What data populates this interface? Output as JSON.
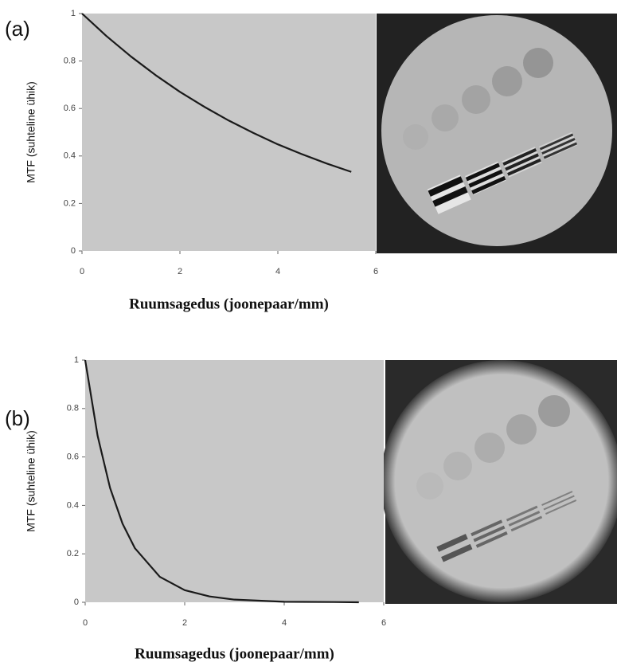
{
  "chart_data": [
    {
      "type": "line",
      "panel_label": "(a)",
      "x_label": "Ruumsagedus (joonepaar/mm)",
      "y_label": "MTF (suhteline ühik)",
      "x": [
        0,
        0.5,
        1,
        1.5,
        2,
        2.5,
        3,
        3.5,
        4,
        4.5,
        5,
        5.5
      ],
      "values": [
        1,
        0.905,
        0.819,
        0.741,
        0.67,
        0.607,
        0.549,
        0.497,
        0.449,
        0.407,
        0.368,
        0.333
      ],
      "color": "#1a1a1a",
      "background": "#c8c8c8",
      "xlim": [
        0,
        6
      ],
      "ylim": [
        0,
        1
      ],
      "xticks": [
        0,
        2,
        4,
        6
      ],
      "yticks": [
        0,
        0.2,
        0.4,
        0.6,
        0.8,
        1
      ]
    },
    {
      "type": "line",
      "panel_label": "(b)",
      "x_label": "Ruumsagedus (joonepaar/mm)",
      "y_label": "MTF (suhteline ühik)",
      "x": [
        0,
        0.25,
        0.5,
        0.75,
        1,
        1.5,
        2,
        2.5,
        3,
        4,
        5,
        5.5
      ],
      "values": [
        1,
        0.687,
        0.472,
        0.325,
        0.223,
        0.105,
        0.05,
        0.024,
        0.011,
        0.002,
        0.001,
        0
      ],
      "color": "#1a1a1a",
      "background": "#c8c8c8",
      "xlim": [
        0,
        6
      ],
      "ylim": [
        0,
        1
      ],
      "xticks": [
        0,
        2,
        4,
        6
      ],
      "yticks": [
        0,
        0.2,
        0.4,
        0.6,
        0.8,
        1
      ]
    }
  ]
}
